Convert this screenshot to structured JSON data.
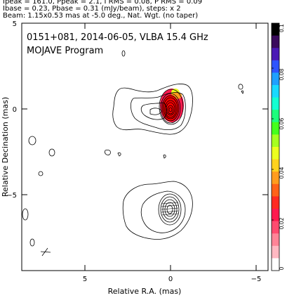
{
  "header": {
    "line1": "Ipeak = 161.0, Ppeak = 2.1, I RMS = 0.08, P RMS = 0.09",
    "line2": "Ibase = 0.23, Pbase = 0.31 (mJy/beam), steps: x 2",
    "line3": "Beam: 1.15x0.53 mas at -5.0 deg., Nat. Wgt. (no taper)"
  },
  "plot": {
    "title_line1": "0151+081, 2014-06-05, VLBA 15.4 GHz",
    "title_line2": "MOJAVE Program"
  },
  "colorbar": {
    "ticks": [
      "0.1",
      "0.08",
      "0.06",
      "0.04",
      "0.02",
      "0"
    ],
    "colors": [
      "#000000",
      "#3a0a5c",
      "#4b1ab5",
      "#2e54ff",
      "#1fa0ff",
      "#19d9ff",
      "#14ffd2",
      "#1cff7c",
      "#44ff1c",
      "#a6ff1f",
      "#ecff1e",
      "#ffd21e",
      "#ff9c1e",
      "#ff6219",
      "#ff2a22",
      "#ff1a4e",
      "#ff4b6f",
      "#ff8497",
      "#ffb8c2",
      "#ffffff"
    ]
  },
  "chart_data": {
    "type": "contour",
    "title": "0151+081, 2014-06-05, VLBA 15.4 GHz",
    "subtitle": "MOJAVE Program",
    "xlabel": "Relative R.A. (mas)",
    "ylabel": "Relative Decination (mas)",
    "xlim": [
      9.5,
      -5.8
    ],
    "ylim": [
      -9.2,
      5.0
    ],
    "x_ticks": [
      5,
      0,
      -5
    ],
    "y_ticks": [
      5,
      0,
      -5
    ],
    "beam": {
      "major_mas": 1.15,
      "minor_mas": 0.53,
      "pa_deg": -5.0
    },
    "ipeak_mjy_per_beam": 161.0,
    "contour_base_mjy_per_beam": 0.23,
    "contour_step": 2,
    "colorbar_range": [
      0,
      0.1
    ]
  }
}
